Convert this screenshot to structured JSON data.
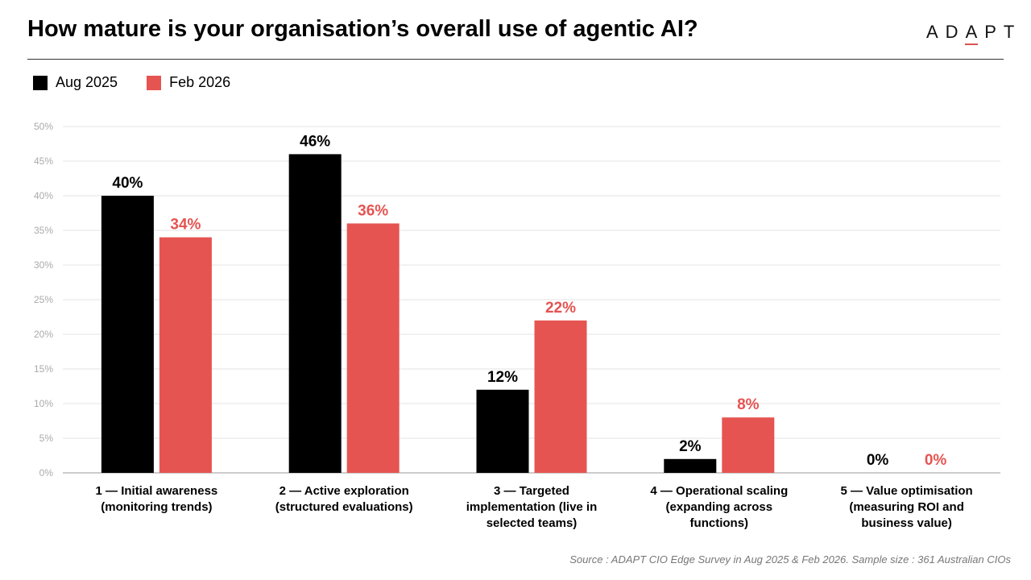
{
  "header": {
    "title": "How mature is your organisation’s overall use of agentic AI?",
    "logo": "ADAPT"
  },
  "footer": {
    "source": "Source : ADAPT CIO Edge Survey in Aug 2025 & Feb 2026. Sample size : 361 Australian CIOs"
  },
  "chart_data": {
    "type": "bar",
    "title": "How mature is your organisation’s overall use of agentic AI?",
    "categories": [
      [
        "1 — Initial awareness",
        "(monitoring trends)"
      ],
      [
        "2 — Active exploration",
        "(structured evaluations)"
      ],
      [
        "3 — Targeted",
        "implementation (live in",
        "selected teams)"
      ],
      [
        "4 — Operational scaling",
        "(expanding across",
        "functions)"
      ],
      [
        "5 — Value optimisation",
        "(measuring ROI and",
        "business value)"
      ]
    ],
    "series": [
      {
        "name": "Aug 2025",
        "color": "#000000",
        "label_color": "#000000",
        "values": [
          40,
          46,
          12,
          2,
          0
        ]
      },
      {
        "name": "Feb 2026",
        "color": "#e55451",
        "label_color": "#e55451",
        "values": [
          34,
          36,
          22,
          8,
          0
        ]
      }
    ],
    "ylim": [
      0,
      50
    ],
    "yticks": [
      0,
      5,
      10,
      15,
      20,
      25,
      30,
      35,
      40,
      45,
      50
    ],
    "ytick_labels": [
      "0%",
      "5%",
      "10%",
      "15%",
      "20%",
      "25%",
      "30%",
      "35%",
      "40%",
      "45%",
      "50%"
    ],
    "legend": "top-left",
    "grid": true
  }
}
